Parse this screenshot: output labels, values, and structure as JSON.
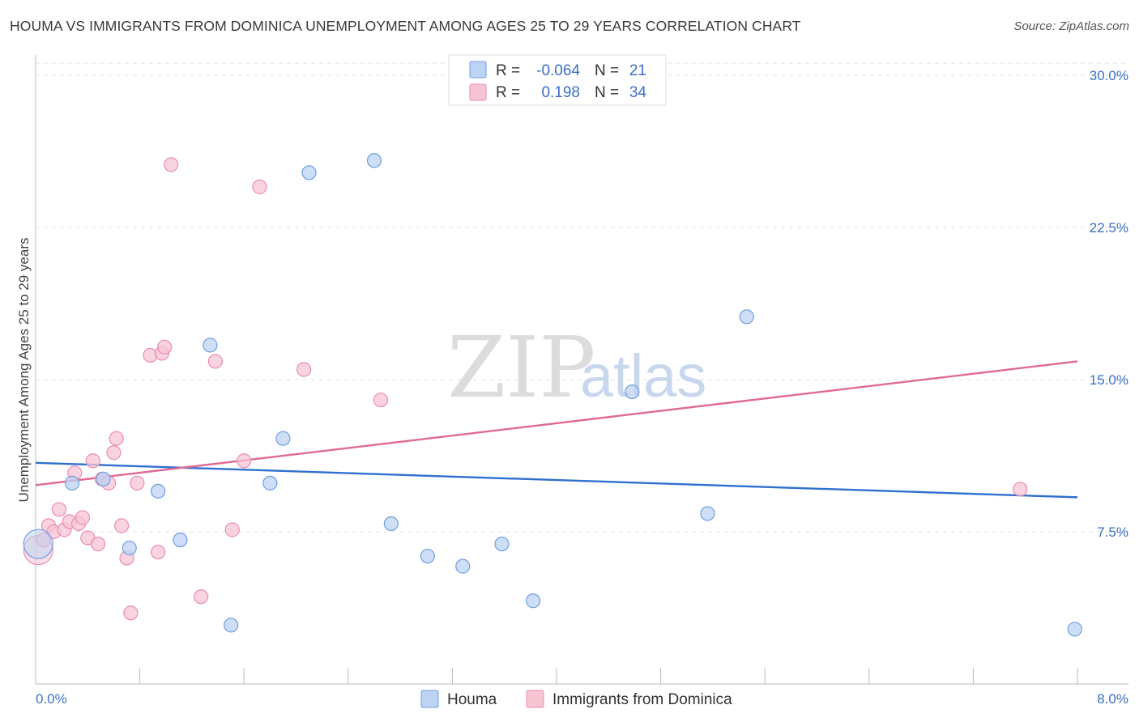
{
  "title": "HOUMA VS IMMIGRANTS FROM DOMINICA UNEMPLOYMENT AMONG AGES 25 TO 29 YEARS CORRELATION CHART",
  "source": "Source: ZipAtlas.com",
  "watermark": {
    "zip": "ZIP",
    "atlas": "atlas"
  },
  "chart_data": {
    "type": "scatter",
    "xlabel": "",
    "ylabel": "Unemployment Among Ages 25 to 29 years",
    "xlim": [
      0,
      8
    ],
    "ylim": [
      0,
      30
    ],
    "x_tick_labels": {
      "left": "0.0%",
      "right": "8.0%"
    },
    "y_ticks": [
      {
        "value": 30,
        "label": "30.0%"
      },
      {
        "value": 22.5,
        "label": "22.5%"
      },
      {
        "value": 15,
        "label": "15.0%"
      },
      {
        "value": 7.5,
        "label": "7.5%"
      }
    ],
    "series": [
      {
        "name": "Houma",
        "color": "#6f9fe0",
        "fill": "#bcd3f3",
        "line_color": "#2f6fcf",
        "R": "-0.064",
        "N": "21",
        "trend": {
          "x": [
            0,
            8
          ],
          "y": [
            10.9,
            9.2
          ]
        },
        "points": [
          {
            "x": 0.02,
            "y": 6.9,
            "big": true
          },
          {
            "x": 0.28,
            "y": 9.9
          },
          {
            "x": 0.52,
            "y": 10.1
          },
          {
            "x": 0.72,
            "y": 6.7
          },
          {
            "x": 0.94,
            "y": 9.5
          },
          {
            "x": 1.11,
            "y": 7.1
          },
          {
            "x": 1.34,
            "y": 16.7
          },
          {
            "x": 1.5,
            "y": 2.9
          },
          {
            "x": 1.8,
            "y": 9.9
          },
          {
            "x": 1.9,
            "y": 12.1
          },
          {
            "x": 2.1,
            "y": 25.2
          },
          {
            "x": 2.6,
            "y": 25.8
          },
          {
            "x": 2.73,
            "y": 7.9
          },
          {
            "x": 3.01,
            "y": 6.3
          },
          {
            "x": 3.28,
            "y": 5.8
          },
          {
            "x": 3.58,
            "y": 6.9
          },
          {
            "x": 3.82,
            "y": 4.1
          },
          {
            "x": 4.58,
            "y": 14.4
          },
          {
            "x": 5.16,
            "y": 8.4
          },
          {
            "x": 5.46,
            "y": 18.1
          },
          {
            "x": 7.98,
            "y": 2.7
          }
        ]
      },
      {
        "name": "Immigrants from Dominica",
        "color": "#e98fae",
        "fill": "#f7c4d4",
        "line_color": "#e06a95",
        "R": "0.198",
        "N": "34",
        "trend": {
          "x": [
            0,
            8
          ],
          "y": [
            9.8,
            15.9
          ]
        },
        "points": [
          {
            "x": 0.02,
            "y": 6.6,
            "big": true
          },
          {
            "x": 0.06,
            "y": 7.1
          },
          {
            "x": 0.1,
            "y": 7.8
          },
          {
            "x": 0.14,
            "y": 7.5
          },
          {
            "x": 0.18,
            "y": 8.6
          },
          {
            "x": 0.22,
            "y": 7.6
          },
          {
            "x": 0.26,
            "y": 8.0
          },
          {
            "x": 0.3,
            "y": 10.4
          },
          {
            "x": 0.33,
            "y": 7.9
          },
          {
            "x": 0.36,
            "y": 8.2
          },
          {
            "x": 0.4,
            "y": 7.2
          },
          {
            "x": 0.44,
            "y": 11.0
          },
          {
            "x": 0.48,
            "y": 6.9
          },
          {
            "x": 0.51,
            "y": 10.1
          },
          {
            "x": 0.56,
            "y": 9.9
          },
          {
            "x": 0.6,
            "y": 11.4
          },
          {
            "x": 0.62,
            "y": 12.1
          },
          {
            "x": 0.66,
            "y": 7.8
          },
          {
            "x": 0.7,
            "y": 6.2
          },
          {
            "x": 0.73,
            "y": 3.5
          },
          {
            "x": 0.78,
            "y": 9.9
          },
          {
            "x": 0.88,
            "y": 16.2
          },
          {
            "x": 0.94,
            "y": 6.5
          },
          {
            "x": 0.97,
            "y": 16.3
          },
          {
            "x": 0.99,
            "y": 16.6
          },
          {
            "x": 1.04,
            "y": 25.6
          },
          {
            "x": 1.27,
            "y": 4.3
          },
          {
            "x": 1.38,
            "y": 15.9
          },
          {
            "x": 1.51,
            "y": 7.6
          },
          {
            "x": 1.6,
            "y": 11.0
          },
          {
            "x": 1.72,
            "y": 24.5
          },
          {
            "x": 2.06,
            "y": 15.5
          },
          {
            "x": 2.65,
            "y": 14.0
          },
          {
            "x": 7.56,
            "y": 9.6
          }
        ]
      }
    ],
    "legend": {
      "position": "top-center",
      "r_label": "R =",
      "n_label": "N ="
    }
  }
}
